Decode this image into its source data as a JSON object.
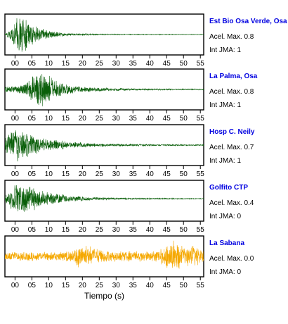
{
  "chart_data": [
    {
      "type": "line",
      "station": "Est Bio Osa Verde, Osa",
      "acel_label": "Acel. Max. 0.8",
      "jma_label": "Int JMA: 1",
      "color": "#0a5f0a",
      "xlim": [
        -3,
        56
      ],
      "xticks": [
        0,
        5,
        10,
        15,
        20,
        25,
        30,
        35,
        40,
        45,
        50,
        55
      ],
      "xticklabels": [
        "00",
        "05",
        "10",
        "15",
        "20",
        "25",
        "30",
        "35",
        "40",
        "45",
        "50",
        "55"
      ],
      "baseline_level": 0.5,
      "envelope": [
        [
          -3,
          0.03
        ],
        [
          -1,
          0.35
        ],
        [
          0.5,
          0.9
        ],
        [
          2,
          0.95
        ],
        [
          4,
          0.75
        ],
        [
          6,
          0.5
        ],
        [
          8,
          0.35
        ],
        [
          10,
          0.22
        ],
        [
          13,
          0.12
        ],
        [
          18,
          0.06
        ],
        [
          25,
          0.03
        ],
        [
          35,
          0.02
        ],
        [
          56,
          0.015
        ]
      ]
    },
    {
      "type": "line",
      "station": "La Palma, Osa",
      "acel_label": "Acel. Max. 0.8",
      "jma_label": "Int JMA: 1",
      "color": "#0a5f0a",
      "xlim": [
        -3,
        56
      ],
      "xticks": [
        0,
        5,
        10,
        15,
        20,
        25,
        30,
        35,
        40,
        45,
        50,
        55
      ],
      "xticklabels": [
        "00",
        "05",
        "10",
        "15",
        "20",
        "25",
        "30",
        "35",
        "40",
        "45",
        "50",
        "55"
      ],
      "baseline_level": 0.5,
      "envelope": [
        [
          -3,
          0.15
        ],
        [
          0,
          0.2
        ],
        [
          3,
          0.35
        ],
        [
          5,
          0.7
        ],
        [
          7,
          0.95
        ],
        [
          9,
          0.85
        ],
        [
          11,
          0.65
        ],
        [
          13,
          0.45
        ],
        [
          15,
          0.3
        ],
        [
          18,
          0.2
        ],
        [
          22,
          0.13
        ],
        [
          28,
          0.08
        ],
        [
          35,
          0.05
        ],
        [
          45,
          0.035
        ],
        [
          56,
          0.03
        ]
      ]
    },
    {
      "type": "line",
      "station": "Hosp C. Neily",
      "acel_label": "Acel. Max. 0.7",
      "jma_label": "Int JMA: 1",
      "color": "#0a5f0a",
      "xlim": [
        -3,
        56
      ],
      "xticks": [
        0,
        5,
        10,
        15,
        20,
        25,
        30,
        35,
        40,
        45,
        50,
        55
      ],
      "xticklabels": [
        "00",
        "05",
        "10",
        "15",
        "20",
        "25",
        "30",
        "35",
        "40",
        "45",
        "50",
        "55"
      ],
      "baseline_level": 0.5,
      "envelope": [
        [
          -3,
          0.35
        ],
        [
          -1,
          0.85
        ],
        [
          1,
          0.95
        ],
        [
          3,
          0.7
        ],
        [
          5,
          0.55
        ],
        [
          8,
          0.4
        ],
        [
          11,
          0.3
        ],
        [
          15,
          0.22
        ],
        [
          20,
          0.14
        ],
        [
          26,
          0.09
        ],
        [
          33,
          0.06
        ],
        [
          42,
          0.04
        ],
        [
          56,
          0.03
        ]
      ]
    },
    {
      "type": "line",
      "station": "Golfito CTP",
      "acel_label": "Acel. Max. 0.4",
      "jma_label": "Int JMA: 0",
      "color": "#0a5f0a",
      "xlim": [
        -3,
        56
      ],
      "xticks": [
        0,
        5,
        10,
        15,
        20,
        25,
        30,
        35,
        40,
        45,
        50,
        55
      ],
      "xticklabels": [
        "00",
        "05",
        "10",
        "15",
        "20",
        "25",
        "30",
        "35",
        "40",
        "45",
        "50",
        "55"
      ],
      "baseline_level": 0.45,
      "envelope": [
        [
          -3,
          0.2
        ],
        [
          -1,
          0.6
        ],
        [
          1,
          0.95
        ],
        [
          3,
          0.85
        ],
        [
          5,
          0.65
        ],
        [
          7,
          0.5
        ],
        [
          10,
          0.35
        ],
        [
          13,
          0.25
        ],
        [
          17,
          0.17
        ],
        [
          22,
          0.1
        ],
        [
          28,
          0.06
        ],
        [
          36,
          0.04
        ],
        [
          45,
          0.03
        ],
        [
          56,
          0.02
        ]
      ]
    },
    {
      "type": "line",
      "station": "La Sabana",
      "acel_label": "Acel. Max. 0.0",
      "jma_label": "Int JMA: 0",
      "color": "#f5a800",
      "xlim": [
        -3,
        56
      ],
      "xticks": [
        0,
        5,
        10,
        15,
        20,
        25,
        30,
        35,
        40,
        45,
        50,
        55
      ],
      "xticklabels": [
        "00",
        "05",
        "10",
        "15",
        "20",
        "25",
        "30",
        "35",
        "40",
        "45",
        "50",
        "55"
      ],
      "xlabel": "Tiempo (s)",
      "baseline_level": 0.5,
      "envelope": [
        [
          -3,
          0.25
        ],
        [
          5,
          0.25
        ],
        [
          12,
          0.25
        ],
        [
          17,
          0.3
        ],
        [
          19,
          0.7
        ],
        [
          22,
          0.55
        ],
        [
          25,
          0.35
        ],
        [
          30,
          0.3
        ],
        [
          40,
          0.28
        ],
        [
          44,
          0.45
        ],
        [
          46,
          0.95
        ],
        [
          48,
          0.8
        ],
        [
          50,
          0.5
        ],
        [
          52,
          0.6
        ],
        [
          54,
          0.55
        ],
        [
          56,
          0.35
        ]
      ]
    }
  ]
}
